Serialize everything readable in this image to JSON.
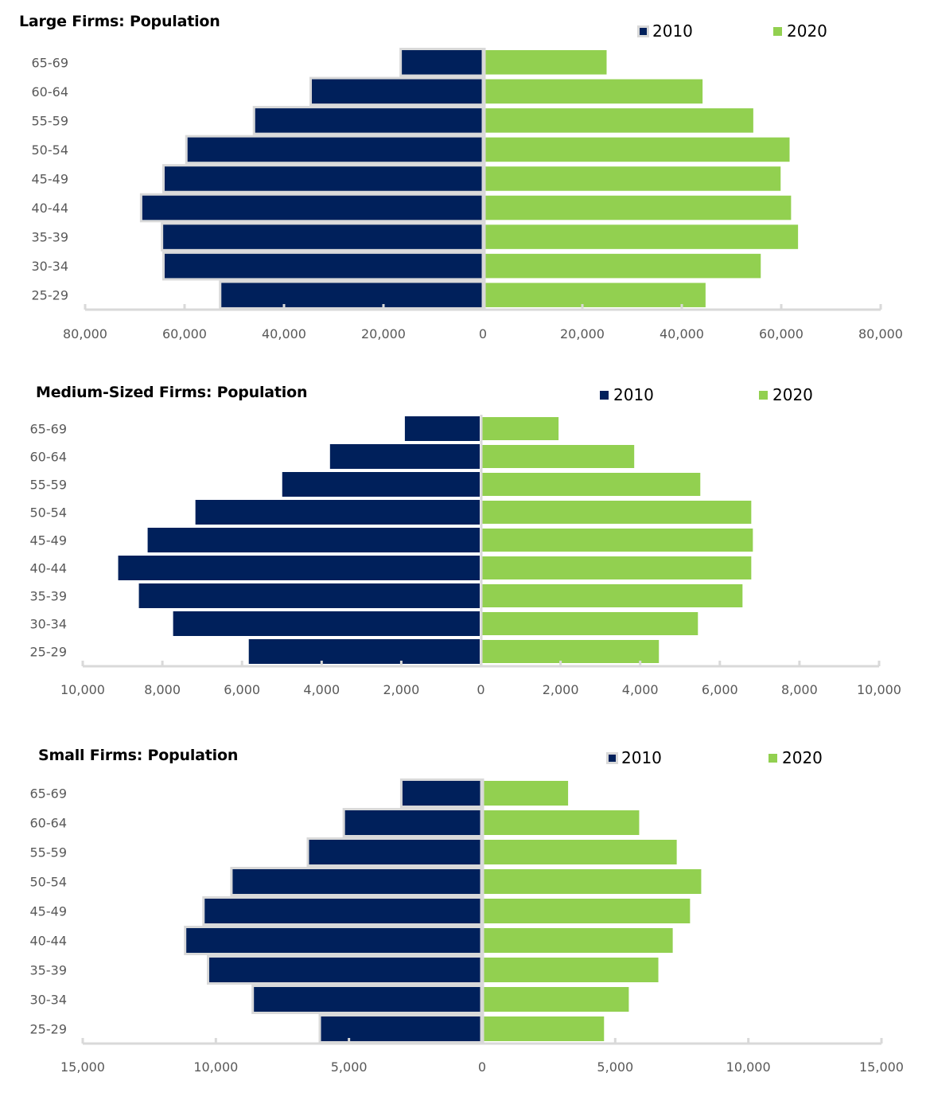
{
  "colors": {
    "series_2010": "#00205b",
    "series_2020": "#92d050",
    "axis": "#d9d9d9",
    "bar_border": "#d9d9d9",
    "label_text": "#595959"
  },
  "chart_data": [
    {
      "type": "bar",
      "orientation": "horizontal",
      "style": "population-pyramid",
      "title": "Large Firms: Population",
      "categories": [
        "65-69",
        "60-64",
        "55-59",
        "50-54",
        "45-49",
        "40-44",
        "35-39",
        "30-34",
        "25-29"
      ],
      "series": [
        {
          "name": "2010",
          "side": "left",
          "values": [
            16300,
            34400,
            45800,
            59400,
            64000,
            68500,
            64300,
            64000,
            52600
          ]
        },
        {
          "name": "2020",
          "side": "right",
          "values": [
            24400,
            43700,
            53900,
            61200,
            59400,
            61500,
            62900,
            55400,
            44300
          ]
        }
      ],
      "legend": [
        "2010",
        "2020"
      ],
      "legend_position": "top-right",
      "xlim": [
        -80000,
        80000
      ],
      "xticks": [
        -80000,
        -60000,
        -40000,
        -20000,
        0,
        20000,
        40000,
        60000,
        80000
      ],
      "xtick_labels": [
        "80,000",
        "60,000",
        "40,000",
        "20,000",
        "0",
        "20,000",
        "40,000",
        "60,000",
        "80,000"
      ],
      "xlabel": "",
      "ylabel": "",
      "grid": false
    },
    {
      "type": "bar",
      "orientation": "horizontal",
      "style": "population-pyramid",
      "title": "Medium-Sized Firms: Population",
      "categories": [
        "65-69",
        "60-64",
        "55-59",
        "50-54",
        "45-49",
        "40-44",
        "35-39",
        "30-34",
        "25-29"
      ],
      "series": [
        {
          "name": "2010",
          "side": "left",
          "values": [
            1880,
            3760,
            4960,
            7140,
            8340,
            9080,
            8560,
            7700,
            5800
          ]
        },
        {
          "name": "2020",
          "side": "right",
          "values": [
            1920,
            3820,
            5480,
            6760,
            6800,
            6760,
            6540,
            5420,
            4440
          ]
        }
      ],
      "legend": [
        "2010",
        "2020"
      ],
      "legend_position": "top-right",
      "xlim": [
        -10000,
        10000
      ],
      "xticks": [
        -10000,
        -8000,
        -6000,
        -4000,
        -2000,
        0,
        2000,
        4000,
        6000,
        8000,
        10000
      ],
      "xtick_labels": [
        "10,000",
        "8,000",
        "6,000",
        "4,000",
        "2,000",
        "0",
        "2,000",
        "4,000",
        "6,000",
        "8,000",
        "10,000"
      ],
      "xlabel": "",
      "ylabel": "",
      "grid": false
    },
    {
      "type": "bar",
      "orientation": "horizontal",
      "style": "population-pyramid",
      "title": "Small Firms: Population",
      "categories": [
        "65-69",
        "60-64",
        "55-59",
        "50-54",
        "45-49",
        "40-44",
        "35-39",
        "30-34",
        "25-29"
      ],
      "series": [
        {
          "name": "2010",
          "side": "left",
          "values": [
            2960,
            5120,
            6470,
            9340,
            10390,
            11080,
            10220,
            8540,
            6020
          ]
        },
        {
          "name": "2020",
          "side": "right",
          "values": [
            3170,
            5840,
            7250,
            8170,
            7750,
            7100,
            6560,
            5450,
            4520
          ]
        }
      ],
      "legend": [
        "2010",
        "2020"
      ],
      "legend_position": "top-right",
      "xlim": [
        -15000,
        15000
      ],
      "xticks": [
        -15000,
        -10000,
        -5000,
        0,
        5000,
        10000,
        15000
      ],
      "xtick_labels": [
        "15,000",
        "10,000",
        "5,000",
        "0",
        "5,000",
        "10,000",
        "15,000"
      ],
      "xlabel": "",
      "ylabel": "",
      "grid": false
    }
  ]
}
